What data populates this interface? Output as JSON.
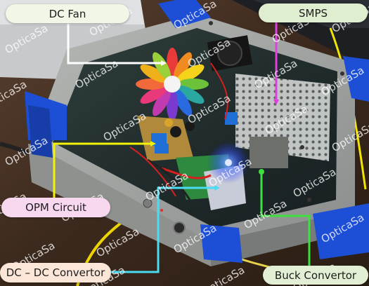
{
  "labels": {
    "dc_fan": "DC Fan",
    "smps": "SMPS",
    "opm_circuit": "OPM Circuit",
    "dc_dc_convertor": "DC – DC Convertor",
    "buck_convertor": "Buck Convertor"
  },
  "watermark": {
    "text": "OpticaSa"
  },
  "colors": {
    "dc_fan_line": "#ffffff",
    "smps_line": "#e040e0",
    "opm_line": "#f2f20a",
    "dc_dc_line": "#49dcf2",
    "buck_line": "#3ee03e"
  }
}
